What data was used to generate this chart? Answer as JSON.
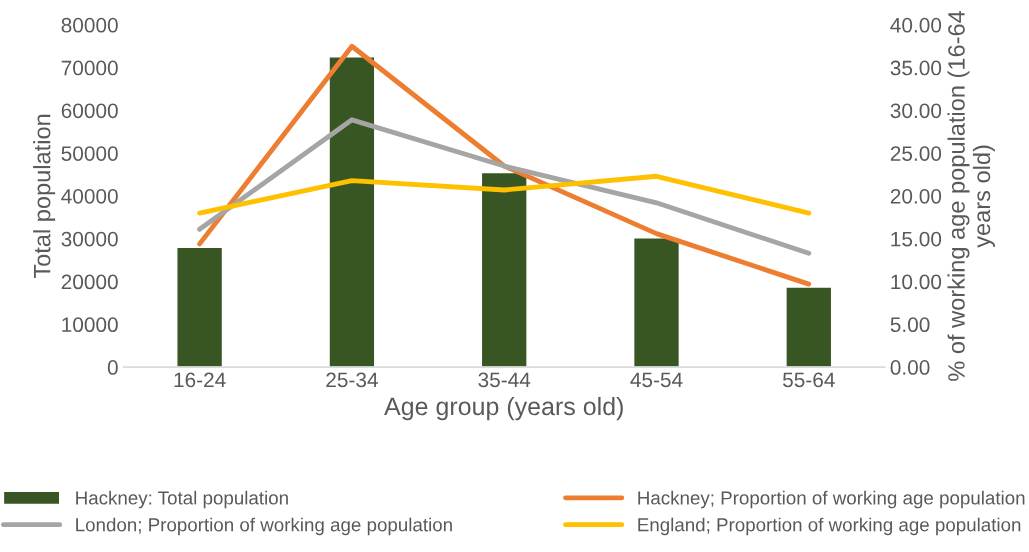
{
  "chart_data": {
    "type": "bar",
    "xlabel": "Age group (years old)",
    "ylabel": "Total population",
    "y2label": "% of working age population (16-64 years old)",
    "categories": [
      "16-24",
      "25-34",
      "35-44",
      "45-54",
      "55-64"
    ],
    "series": [
      {
        "name": "Hackney: Total population",
        "color": "#375623",
        "values": [
          28000,
          72500,
          45500,
          30200,
          18700
        ]
      },
      {
        "name": "Hackney; Proportion of working age population",
        "color": "#ed7d31",
        "type": "line",
        "axis": "y2",
        "values": [
          14.4,
          37.5,
          23.5,
          15.6,
          9.7
        ]
      },
      {
        "name": "London; Proportion of working age population",
        "color": "#a5a5a5",
        "type": "line",
        "axis": "y2",
        "values": [
          16.1,
          28.9,
          23.5,
          19.2,
          13.3
        ]
      },
      {
        "name": "England; Proportion of working age population",
        "color": "#ffc000",
        "type": "line",
        "axis": "y2",
        "values": [
          18.0,
          21.8,
          20.7,
          22.3,
          18.0
        ]
      }
    ],
    "ylim": [
      0,
      80000
    ],
    "yticks": [
      0,
      10000,
      20000,
      30000,
      40000,
      50000,
      60000,
      70000,
      80000
    ],
    "y2lim": [
      0,
      40
    ],
    "y2ticks": [
      {
        "value": 0,
        "label": "0.00"
      },
      {
        "value": 5,
        "label": "5.00"
      },
      {
        "value": 10,
        "label": "10.00"
      },
      {
        "value": 15,
        "label": "15.00"
      },
      {
        "value": 20,
        "label": "20.00"
      },
      {
        "value": 25,
        "label": "25.00"
      },
      {
        "value": 30,
        "label": "30.00"
      },
      {
        "value": 35,
        "label": "35.00"
      },
      {
        "value": 40,
        "label": "40.00"
      }
    ],
    "grid": false,
    "legend": "bottom",
    "marker": "none",
    "line_style": "solid"
  }
}
